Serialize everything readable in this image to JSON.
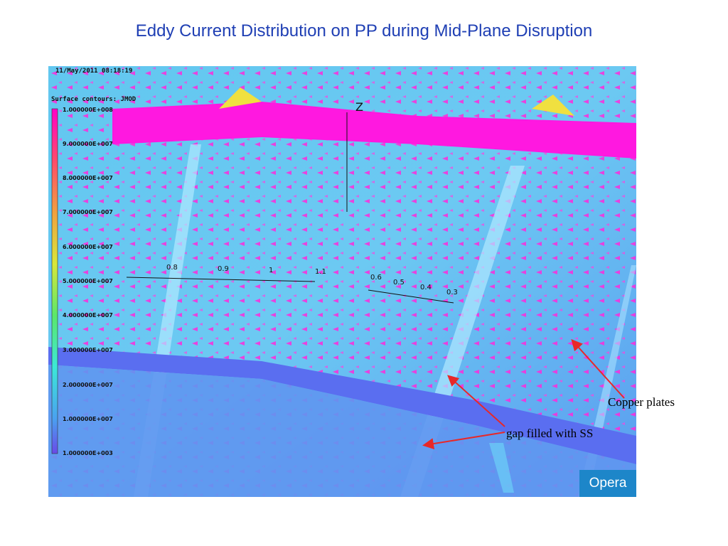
{
  "title": "Eddy Current Distribution on PP during Mid-Plane Disruption",
  "timestamp": "11/May/2011 08:18:19",
  "contour_title": "Surface contours: JMOD",
  "legend_values": [
    "1.000000E+008",
    "9.000000E+007",
    "8.000000E+007",
    "7.000000E+007",
    "6.000000E+007",
    "5.000000E+007",
    "4.000000E+007",
    "3.000000E+007",
    "2.000000E+007",
    "1.000000E+007",
    "1.000000E+003"
  ],
  "legend_colors": [
    "#ff00c8",
    "#ff3a7a",
    "#ff6b3a",
    "#f3a040",
    "#e8d83a",
    "#bfe83a",
    "#6ee86a",
    "#3ce8c8",
    "#3cc8f0",
    "#4a8cf0",
    "#6a5ae8"
  ],
  "axis_label": "Z",
  "ticks": [
    "0.8",
    "0.9",
    "1",
    "1.1",
    "0.6",
    "0.5",
    "0.4",
    "0.3"
  ],
  "annotations": {
    "copper": "Copper plates",
    "gap": "gap filled with SS"
  },
  "logo": "Opera",
  "colors": {
    "title": "#1f3fb4",
    "background_field": "#5aa8f0",
    "arrow": "#e82828"
  }
}
